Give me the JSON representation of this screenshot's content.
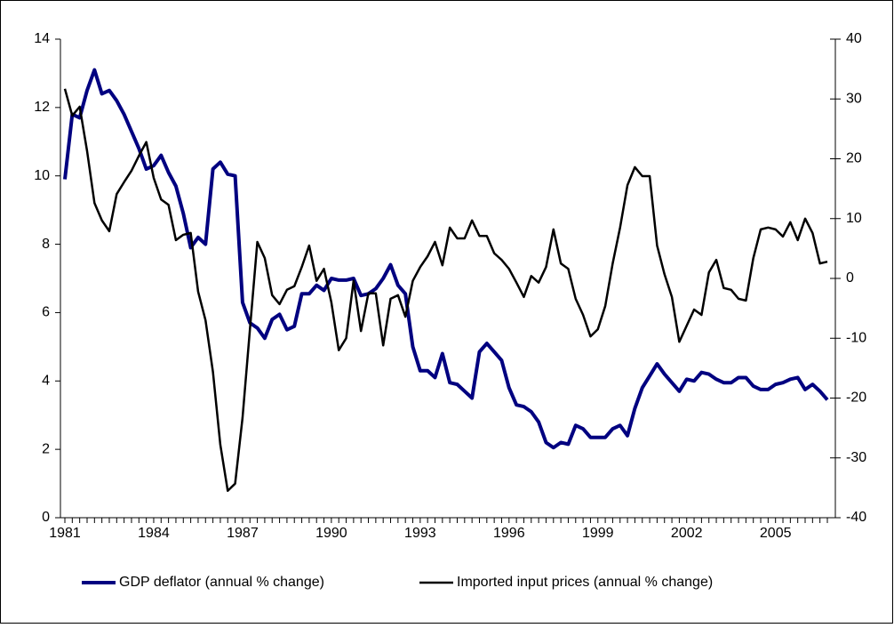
{
  "chart_data": {
    "type": "line",
    "categories": [
      "1981",
      null,
      null,
      null,
      null,
      null,
      null,
      null,
      null,
      null,
      null,
      null,
      "1984",
      null,
      null,
      null,
      null,
      null,
      null,
      null,
      null,
      null,
      null,
      null,
      "1987",
      null,
      null,
      null,
      null,
      null,
      null,
      null,
      null,
      null,
      null,
      null,
      "1990",
      null,
      null,
      null,
      null,
      null,
      null,
      null,
      null,
      null,
      null,
      null,
      "1993",
      null,
      null,
      null,
      null,
      null,
      null,
      null,
      null,
      null,
      null,
      null,
      "1996",
      null,
      null,
      null,
      null,
      null,
      null,
      null,
      null,
      null,
      null,
      null,
      "1999",
      null,
      null,
      null,
      null,
      null,
      null,
      null,
      null,
      null,
      null,
      null,
      "2002",
      null,
      null,
      null,
      null,
      null,
      null,
      null,
      null,
      null,
      null,
      null,
      "2005",
      null,
      null,
      null,
      null,
      null,
      null,
      null
    ],
    "series": [
      {
        "name": "GDP deflator (annual % change)",
        "color": "#000080",
        "axis": "y",
        "values": [
          9.9,
          11.8,
          11.7,
          12.5,
          13.1,
          12.4,
          12.5,
          12.2,
          11.8,
          11.3,
          10.8,
          10.2,
          10.3,
          10.6,
          10.1,
          9.7,
          8.9,
          7.9,
          8.2,
          8.0,
          10.2,
          10.4,
          10.05,
          10.0,
          6.3,
          5.7,
          5.55,
          5.25,
          5.8,
          5.95,
          5.5,
          5.6,
          6.55,
          6.55,
          6.8,
          6.65,
          7.0,
          6.95,
          6.95,
          7.0,
          6.5,
          6.55,
          6.7,
          7.0,
          7.4,
          6.8,
          6.55,
          5.0,
          4.3,
          4.3,
          4.1,
          4.8,
          3.95,
          3.9,
          3.7,
          3.5,
          4.85,
          5.1,
          4.85,
          4.6,
          3.8,
          3.3,
          3.25,
          3.1,
          2.8,
          2.2,
          2.05,
          2.2,
          2.15,
          2.7,
          2.6,
          2.35,
          2.35,
          2.35,
          2.6,
          2.7,
          2.4,
          3.2,
          3.8,
          4.15,
          4.5,
          4.2,
          3.95,
          3.7,
          4.05,
          4.0,
          4.25,
          4.2,
          4.05,
          3.95,
          3.95,
          4.1,
          4.1,
          3.85,
          3.75,
          3.75,
          3.9,
          3.95,
          4.05,
          4.1,
          3.75,
          3.9,
          3.7,
          3.45
        ]
      },
      {
        "name": "Imported input prices (annual % change)",
        "color": "#000000",
        "axis": "y2",
        "values": [
          31.7,
          27.2,
          28.7,
          21.3,
          12.6,
          9.7,
          7.9,
          14.1,
          16.1,
          18.0,
          20.5,
          22.8,
          16.8,
          13.2,
          12.3,
          6.4,
          7.3,
          7.6,
          -2.2,
          -7.0,
          -15.6,
          -27.8,
          -35.5,
          -34.3,
          -23.3,
          -8.5,
          6.1,
          3.4,
          -2.8,
          -4.3,
          -1.9,
          -1.3,
          1.9,
          5.5,
          -0.4,
          1.6,
          -4.0,
          -12.0,
          -10.0,
          -0.4,
          -8.8,
          -2.5,
          -2.5,
          -11.2,
          -3.4,
          -2.8,
          -6.4,
          -0.4,
          1.9,
          3.7,
          6.1,
          2.2,
          8.5,
          6.7,
          6.7,
          9.7,
          7.1,
          7.1,
          4.2,
          3.1,
          1.6,
          -0.7,
          -3.1,
          0.4,
          -0.7,
          1.9,
          8.2,
          2.5,
          1.6,
          -3.4,
          -6.1,
          -9.7,
          -8.5,
          -4.6,
          2.5,
          8.5,
          15.6,
          18.6,
          17.1,
          17.1,
          5.5,
          0.7,
          -3.1,
          -10.6,
          -7.9,
          -5.2,
          -6.1,
          1.0,
          3.1,
          -1.6,
          -1.9,
          -3.4,
          -3.7,
          3.4,
          8.2,
          8.5,
          8.2,
          7.0,
          9.4,
          6.4,
          10.0,
          7.6,
          2.5,
          2.8
        ]
      }
    ],
    "ylim": [
      0,
      14
    ],
    "yticks": [
      0,
      2,
      4,
      6,
      8,
      10,
      12,
      14
    ],
    "y2lim": [
      -40,
      40
    ],
    "y2ticks": [
      -40,
      -30,
      -20,
      -10,
      0,
      10,
      20,
      30,
      40
    ],
    "legend": "bottom"
  }
}
